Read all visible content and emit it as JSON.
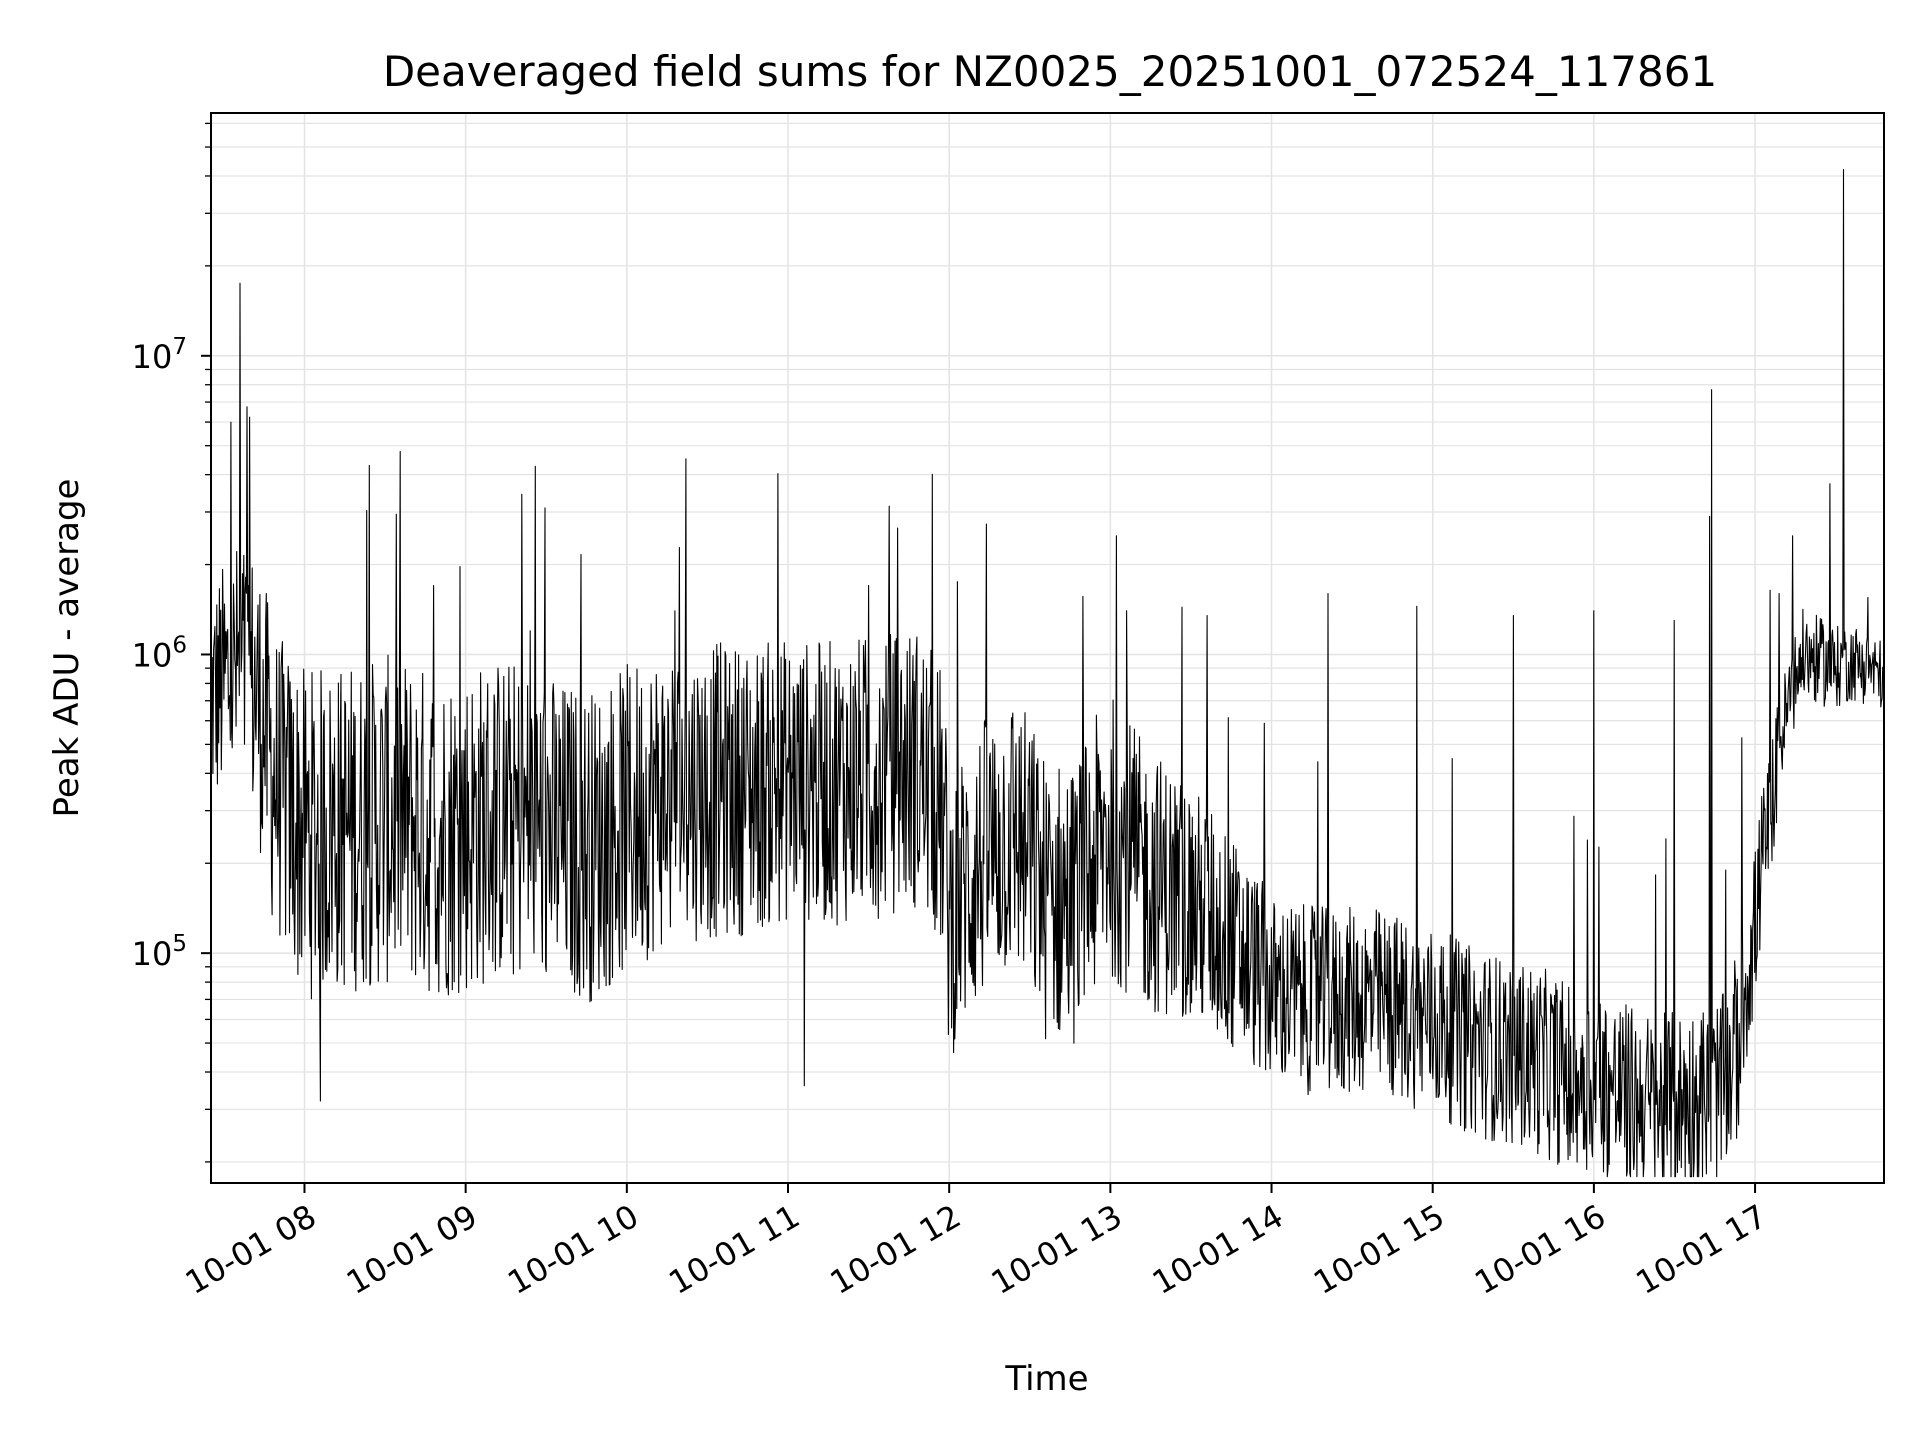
{
  "chart_data": {
    "type": "line",
    "title": "Deaveraged field sums for NZ0025_20251001_072524_117861",
    "xlabel": "Time",
    "ylabel": "Peak ADU - average",
    "x_range": [
      "2025-10-01 07:25",
      "2025-10-01 17:47"
    ],
    "xlim_hours": [
      7.42,
      17.8
    ],
    "ylim": [
      17000,
      65000000
    ],
    "y_scale": "log",
    "grid": true,
    "legend": "none",
    "line_color": "#000000",
    "x_ticks": [
      {
        "value": 8,
        "label": "10-01 08"
      },
      {
        "value": 9,
        "label": "10-01 09"
      },
      {
        "value": 10,
        "label": "10-01 10"
      },
      {
        "value": 11,
        "label": "10-01 11"
      },
      {
        "value": 12,
        "label": "10-01 12"
      },
      {
        "value": 13,
        "label": "10-01 13"
      },
      {
        "value": 14,
        "label": "10-01 14"
      },
      {
        "value": 15,
        "label": "10-01 15"
      },
      {
        "value": 16,
        "label": "10-01 16"
      },
      {
        "value": 17,
        "label": "10-01 17"
      }
    ],
    "y_ticks": [
      {
        "value": 100000,
        "base": "10",
        "exp": "5"
      },
      {
        "value": 1000000,
        "base": "10",
        "exp": "6"
      },
      {
        "value": 10000000,
        "base": "10",
        "exp": "7"
      }
    ],
    "series": [
      {
        "points": [
          [
            7.42,
            700000
          ],
          [
            7.5,
            800000
          ],
          [
            7.6,
            900000
          ],
          [
            7.7,
            750000
          ],
          [
            7.8,
            400000
          ],
          [
            7.9,
            300000
          ],
          [
            8.0,
            250000
          ],
          [
            8.2,
            260000
          ],
          [
            8.4,
            270000
          ],
          [
            8.6,
            280000
          ],
          [
            8.8,
            250000
          ],
          [
            9.0,
            260000
          ],
          [
            9.2,
            280000
          ],
          [
            9.4,
            270000
          ],
          [
            9.6,
            240000
          ],
          [
            9.8,
            230000
          ],
          [
            10.0,
            280000
          ],
          [
            10.2,
            330000
          ],
          [
            10.4,
            350000
          ],
          [
            10.6,
            350000
          ],
          [
            10.8,
            360000
          ],
          [
            11.0,
            380000
          ],
          [
            11.2,
            370000
          ],
          [
            11.4,
            380000
          ],
          [
            11.6,
            400000
          ],
          [
            11.8,
            420000
          ],
          [
            11.95,
            300000
          ],
          [
            12.0,
            130000
          ],
          [
            12.2,
            200000
          ],
          [
            12.4,
            260000
          ],
          [
            12.6,
            150000
          ],
          [
            12.8,
            150000
          ],
          [
            13.0,
            250000
          ],
          [
            13.2,
            180000
          ],
          [
            13.4,
            160000
          ],
          [
            13.6,
            130000
          ],
          [
            13.8,
            100000
          ],
          [
            14.0,
            75000
          ],
          [
            14.2,
            70000
          ],
          [
            14.4,
            68000
          ],
          [
            14.6,
            70000
          ],
          [
            14.8,
            65000
          ],
          [
            15.0,
            60000
          ],
          [
            15.2,
            52000
          ],
          [
            15.4,
            48000
          ],
          [
            15.6,
            45000
          ],
          [
            15.8,
            40000
          ],
          [
            16.0,
            38000
          ],
          [
            16.2,
            33000
          ],
          [
            16.4,
            30000
          ],
          [
            16.6,
            32000
          ],
          [
            16.8,
            35000
          ],
          [
            16.9,
            50000
          ],
          [
            17.0,
            120000
          ],
          [
            17.1,
            300000
          ],
          [
            17.2,
            650000
          ],
          [
            17.3,
            1000000
          ],
          [
            17.4,
            950000
          ],
          [
            17.5,
            900000
          ],
          [
            17.6,
            950000
          ],
          [
            17.7,
            900000
          ],
          [
            17.8,
            850000
          ]
        ],
        "spikes": [
          [
            7.6,
            17500000
          ],
          [
            7.65,
            1700000
          ],
          [
            8.8,
            1700000
          ],
          [
            9.4,
            1200000
          ],
          [
            10.3,
            1400000
          ],
          [
            11.5,
            1700000
          ],
          [
            13.1,
            1400000
          ],
          [
            13.6,
            1350000
          ],
          [
            14.35,
            1600000
          ],
          [
            14.9,
            1450000
          ],
          [
            15.5,
            1350000
          ],
          [
            16.0,
            1400000
          ],
          [
            16.5,
            1300000
          ],
          [
            16.72,
            2900000
          ],
          [
            16.73,
            7700000
          ],
          [
            17.15,
            1600000
          ],
          [
            17.55,
            42000000
          ],
          [
            17.7,
            1550000
          ],
          [
            8.1,
            32000
          ],
          [
            11.1,
            36000
          ],
          [
            16.3,
            20000
          ],
          [
            15.85,
            21000
          ]
        ],
        "noise_band": [
          [
            7.42,
            3.0
          ],
          [
            8.0,
            5.0
          ],
          [
            9.0,
            5.0
          ],
          [
            10.0,
            4.5
          ],
          [
            11.0,
            4.0
          ],
          [
            12.0,
            4.0
          ],
          [
            13.0,
            4.0
          ],
          [
            14.0,
            2.5
          ],
          [
            15.0,
            2.5
          ],
          [
            16.0,
            2.5
          ],
          [
            16.9,
            2.5
          ],
          [
            17.2,
            1.6
          ],
          [
            17.8,
            1.4
          ]
        ]
      }
    ]
  }
}
